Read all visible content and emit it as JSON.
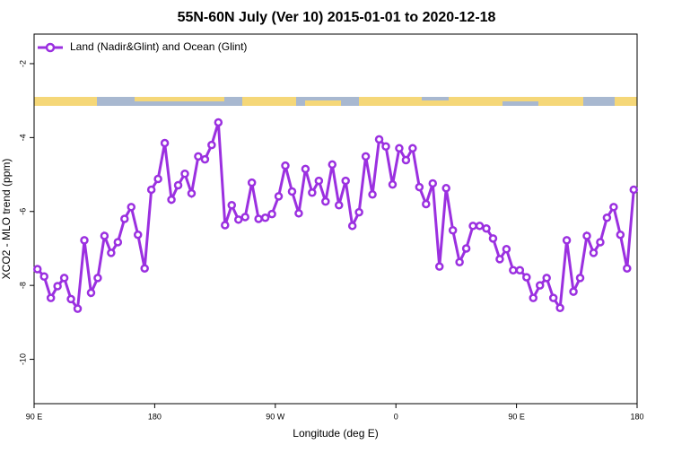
{
  "chart_data": {
    "type": "line",
    "title": "55N-60N July (Ver 10)   2015-01-01 to 2020-12-18",
    "x_label": "Longitude (deg E)",
    "y_label": "XCO2 - MLO trend (ppm)",
    "x": [
      92.5,
      97.5,
      102.5,
      107.5,
      112.5,
      117.5,
      122.5,
      127.5,
      132.5,
      137.5,
      142.5,
      147.5,
      152.5,
      157.5,
      162.5,
      167.5,
      172.5,
      177.5,
      182.5,
      187.5,
      192.5,
      197.5,
      202.5,
      207.5,
      212.5,
      217.5,
      222.5,
      227.5,
      232.5,
      237.5,
      242.5,
      247.5,
      252.5,
      257.5,
      262.5,
      267.5,
      272.5,
      277.5,
      282.5,
      287.5,
      292.5,
      297.5,
      302.5,
      307.5,
      312.5,
      317.5,
      322.5,
      327.5,
      332.5,
      337.5,
      342.5,
      347.5,
      352.5,
      357.5,
      362.5,
      367.5,
      372.5,
      377.5,
      382.5,
      387.5,
      392.5,
      397.5,
      402.5,
      407.5,
      412.5,
      417.5,
      422.5,
      427.5,
      432.5,
      437.5,
      442.5,
      447.5,
      452.5,
      457.5,
      462.5,
      467.5,
      472.5,
      477.5,
      482.5,
      487.5,
      492.5,
      497.5,
      502.5,
      507.5,
      512.5,
      517.5,
      522.5,
      527.5,
      532.5,
      537.5
    ],
    "series": [
      {
        "name": "Land (Nadir&Glint) and Ocean (Glint)",
        "color": "#9b30e0",
        "values": [
          -7.56,
          -7.76,
          -8.34,
          -8.02,
          -7.8,
          -8.37,
          -8.63,
          -6.78,
          -8.2,
          -7.8,
          -6.66,
          -7.12,
          -6.83,
          -6.2,
          -5.88,
          -6.63,
          -7.54,
          -5.41,
          -5.12,
          -4.15,
          -5.68,
          -5.29,
          -4.98,
          -5.51,
          -4.51,
          -4.59,
          -4.2,
          -3.59,
          -6.37,
          -5.83,
          -6.22,
          -6.15,
          -5.22,
          -6.2,
          -6.17,
          -6.07,
          -5.59,
          -4.76,
          -5.46,
          -6.05,
          -4.85,
          -5.49,
          -5.17,
          -5.73,
          -4.73,
          -5.83,
          -5.17,
          -6.39,
          -6.02,
          -4.51,
          -5.54,
          -4.05,
          -4.24,
          -5.27,
          -4.29,
          -4.61,
          -4.29,
          -5.34,
          -5.8,
          -5.24,
          -7.49,
          -5.37,
          -6.51,
          -7.37,
          -7.0,
          -6.39,
          -6.39,
          -6.46,
          -6.73,
          -7.29,
          -7.02,
          -7.59,
          -7.59,
          -7.78,
          -8.34,
          -8.0,
          -7.8,
          -8.34,
          -8.61,
          -6.78,
          -8.17,
          -7.8,
          -6.66,
          -7.12,
          -6.83,
          -6.17,
          -5.88,
          -6.63,
          -7.54,
          -5.41
        ]
      }
    ],
    "xlim": [
      90,
      540
    ],
    "xticks": [
      {
        "value": 90,
        "label": "90 E"
      },
      {
        "value": 180,
        "label": "180"
      },
      {
        "value": 270,
        "label": "90 W"
      },
      {
        "value": 360,
        "label": "0"
      },
      {
        "value": 450,
        "label": "90 E"
      },
      {
        "value": 540,
        "label": "180"
      }
    ],
    "ylim": [
      -11.2,
      -1.2
    ],
    "yticks": [
      -2,
      -4,
      -6,
      -8,
      -10
    ],
    "legend": "upper-left"
  }
}
